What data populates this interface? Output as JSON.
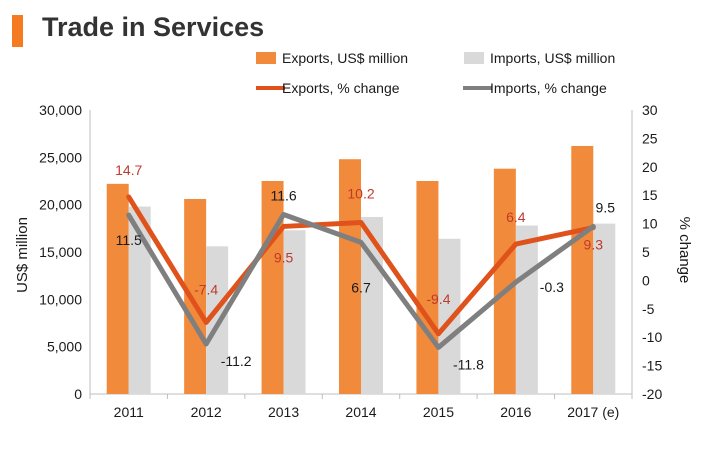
{
  "title": "Trade in Services",
  "chart_data": {
    "type": "bar+line",
    "title": "Trade in Services",
    "categories": [
      "2011",
      "2012",
      "2013",
      "2014",
      "2015",
      "2016",
      "2017 (e)"
    ],
    "bar_series": [
      {
        "name": "Exports, US$ million",
        "values": [
          22200,
          20600,
          22500,
          24800,
          22500,
          23800,
          26200
        ],
        "color": "#f28a3b"
      },
      {
        "name": "Imports, US$ million",
        "values": [
          19800,
          15600,
          17300,
          18700,
          16400,
          17800,
          18000
        ],
        "color": "#d9d9d9"
      }
    ],
    "line_series": [
      {
        "name": "Exports, % change",
        "values": [
          14.7,
          -7.4,
          9.5,
          10.2,
          -9.4,
          6.4,
          9.3
        ],
        "labels": [
          "14.7",
          "-7.4",
          "9.5",
          "10.2",
          "-9.4",
          "6.4",
          "9.3"
        ],
        "color": "#e0521b",
        "label_color": "#c0392b"
      },
      {
        "name": "Imports, % change",
        "values": [
          11.5,
          -11.2,
          11.6,
          6.7,
          -11.8,
          -0.3,
          9.5
        ],
        "labels": [
          "11.5",
          "-11.2",
          "11.6",
          "6.7",
          "-11.8",
          "-0.3",
          "9.5"
        ],
        "color": "#7f7f7f",
        "label_color": "#1a1a1a"
      }
    ],
    "y_left": {
      "label": "US$ million",
      "min": 0,
      "max": 30000,
      "ticks": [
        "0",
        "5,000",
        "10,000",
        "15,000",
        "20,000",
        "25,000",
        "30,000"
      ]
    },
    "y_right": {
      "label": "% change",
      "min": -20,
      "max": 30,
      "ticks": [
        "-20",
        "-15",
        "-10",
        "-5",
        "0",
        "5",
        "10",
        "15",
        "20",
        "25",
        "30"
      ]
    },
    "legend_position": "top-right",
    "grid": false
  }
}
